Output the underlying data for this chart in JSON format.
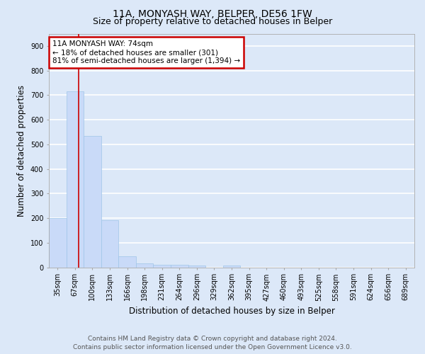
{
  "title": "11A, MONYASH WAY, BELPER, DE56 1FW",
  "subtitle": "Size of property relative to detached houses in Belper",
  "xlabel": "Distribution of detached houses by size in Belper",
  "ylabel": "Number of detached properties",
  "categories": [
    "35sqm",
    "67sqm",
    "100sqm",
    "133sqm",
    "166sqm",
    "198sqm",
    "231sqm",
    "264sqm",
    "296sqm",
    "329sqm",
    "362sqm",
    "395sqm",
    "427sqm",
    "460sqm",
    "493sqm",
    "525sqm",
    "558sqm",
    "591sqm",
    "624sqm",
    "656sqm",
    "689sqm"
  ],
  "values": [
    200,
    715,
    535,
    192,
    45,
    17,
    11,
    10,
    8,
    0,
    8,
    0,
    0,
    0,
    0,
    0,
    0,
    0,
    0,
    0,
    0
  ],
  "bar_color": "#c9daf8",
  "bar_edge_color": "#9fc5e8",
  "background_color": "#dce8f8",
  "grid_color": "#ffffff",
  "annotation_title": "11A MONYASH WAY: 74sqm",
  "annotation_line1": "← 18% of detached houses are smaller (301)",
  "annotation_line2": "81% of semi-detached houses are larger (1,394) →",
  "annotation_box_color": "#ffffff",
  "annotation_box_edge": "#cc0000",
  "property_line_color": "#cc0000",
  "footer_line1": "Contains HM Land Registry data © Crown copyright and database right 2024.",
  "footer_line2": "Contains public sector information licensed under the Open Government Licence v3.0.",
  "ylim": [
    0,
    950
  ],
  "yticks": [
    0,
    100,
    200,
    300,
    400,
    500,
    600,
    700,
    800,
    900
  ],
  "title_fontsize": 10,
  "subtitle_fontsize": 9,
  "axis_label_fontsize": 8.5,
  "tick_fontsize": 7,
  "annotation_fontsize": 7.5,
  "footer_fontsize": 6.5
}
